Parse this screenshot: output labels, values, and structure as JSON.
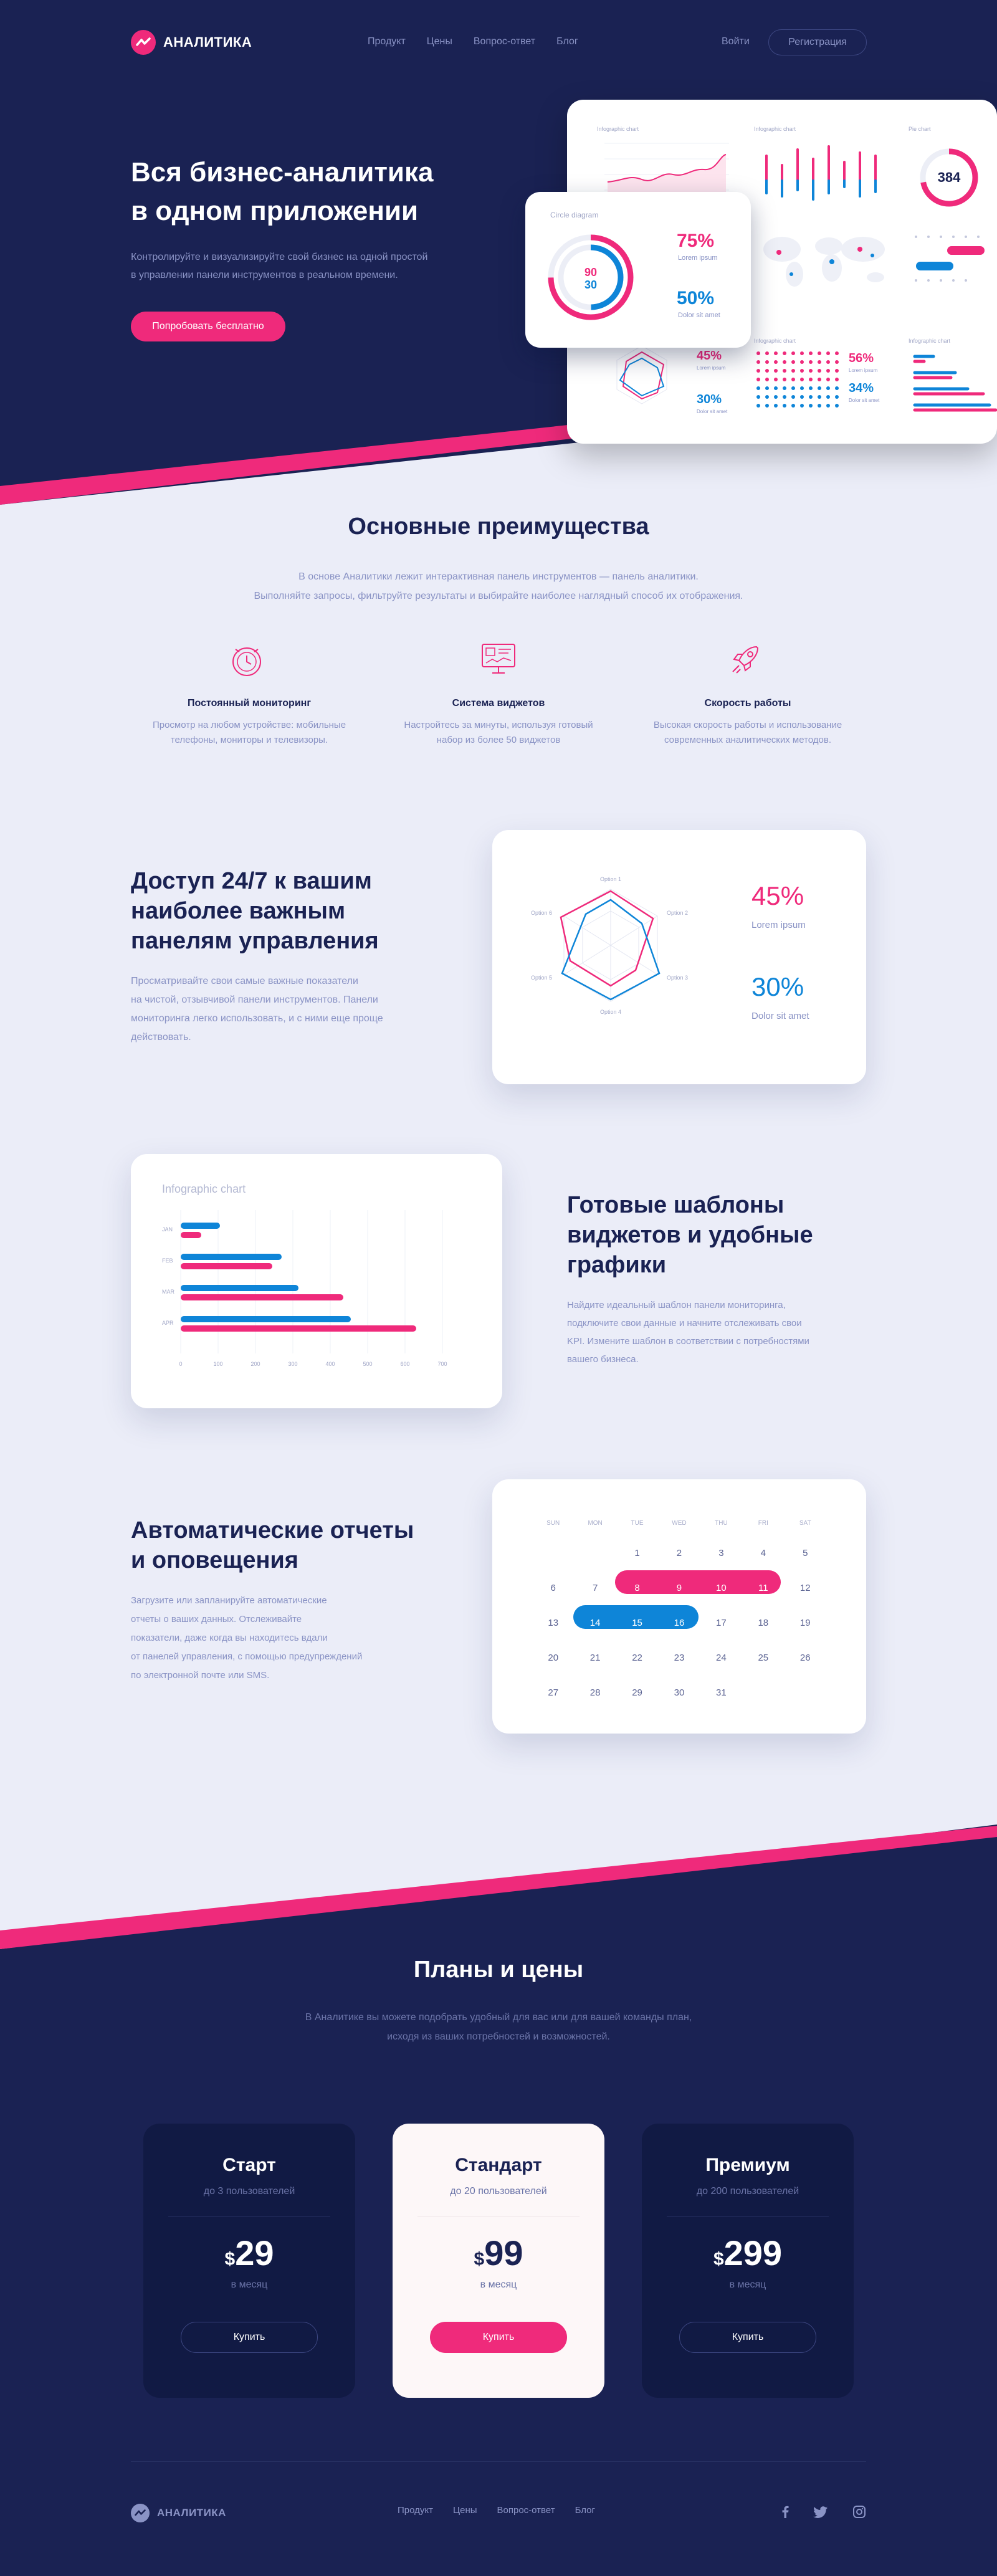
{
  "header": {
    "logo_text": "АНАЛИТИКА",
    "nav": [
      "Продукт",
      "Цены",
      "Вопрос-ответ",
      "Блог"
    ],
    "login": "Войти",
    "register": "Регистрация"
  },
  "hero": {
    "title_line1": "Вся бизнес-аналитика",
    "title_line2": "в одном приложении",
    "text_line1": "Контролируйте и визуализируйте свой бизнес на одной простой",
    "text_line2": "в управлении панели инструментов в реальном времени.",
    "cta": "Попробовать бесплатно"
  },
  "dashboard": {
    "label_infographic1": "Infographic chart",
    "label_infographic2": "Infographic chart",
    "label_pie": "Pie chart",
    "label_infographic3": "Infographic chart",
    "label_infographic4": "Infographic chart",
    "pie_value": "384",
    "circle_title": "Circle diagram",
    "circle_v1": "90",
    "circle_v2": "30",
    "pct1": "75%",
    "pct1_label": "Lorem ipsum",
    "pct2": "50%",
    "pct2_label": "Dolor sit amet",
    "radar_pct1": "45%",
    "radar_pct1_label": "Lorem ipsum",
    "radar_pct2": "30%",
    "radar_pct2_label": "Dolor sit amet",
    "dots_pct1": "56%",
    "dots_pct1_label": "Lorem ipsum",
    "dots_pct2": "34%",
    "dots_pct2_label": "Dolor sit amet"
  },
  "benefits": {
    "title": "Основные преимущества",
    "text_line1": "В основе Аналитики лежит интерактивная панель инструментов — панель аналитики.",
    "text_line2": "Выполняйте запросы, фильтруйте результаты и выбирайте наиболее наглядный способ их отображения.",
    "items": [
      {
        "title": "Постоянный мониторинг",
        "line1": "Просмотр на любом устройстве: мобильные",
        "line2": "телефоны, мониторы и телевизоры."
      },
      {
        "title": "Система виджетов",
        "line1": "Настройтесь за минуты, используя готовый",
        "line2": "набор из более 50 виджетов"
      },
      {
        "title": "Скорость работы",
        "line1": "Высокая скорость работы и использование",
        "line2": "современных аналитических методов."
      }
    ]
  },
  "access": {
    "title_line1": "Доступ 24/7 к вашим",
    "title_line2": "наиболее важным",
    "title_line3": "панелям управления",
    "text_line1": "Просматривайте свои самые важные показатели",
    "text_line2": "на чистой, отзывчивой панели инструментов. Панели",
    "text_line3": "мониторинга легко использовать, и с ними еще проще",
    "text_line4": "действовать.",
    "radar_options": [
      "Option 1",
      "Option 2",
      "Option 3",
      "Option 4",
      "Option 5",
      "Option 6"
    ],
    "pct1": "45%",
    "pct1_label": "Lorem ipsum",
    "pct2": "30%",
    "pct2_label": "Dolor sit amet"
  },
  "templates": {
    "title_line1": "Готовые шаблоны",
    "title_line2": "виджетов и удобные",
    "title_line3": "графики",
    "text_line1": "Найдите идеальный шаблон панели мониторинга,",
    "text_line2": "подключите свои данные и начните отслеживать свои",
    "text_line3": "KPI. Измените шаблон в соответствии с потребностями",
    "text_line4": "вашего бизнеса.",
    "chart_title": "Infographic chart"
  },
  "chart_data": {
    "type": "bar",
    "orientation": "horizontal",
    "title": "Infographic chart",
    "categories": [
      "JAN",
      "FEB",
      "MAR",
      "APR"
    ],
    "series": [
      {
        "color": "#0e85d8",
        "values": [
          105,
          270,
          315,
          455
        ]
      },
      {
        "color": "#ef2a7b",
        "values": [
          55,
          245,
          435,
          630
        ]
      }
    ],
    "xticks": [
      "0",
      "100",
      "200",
      "300",
      "400",
      "500",
      "600",
      "700"
    ],
    "xlim": [
      0,
      700
    ],
    "grid": true
  },
  "reports": {
    "title_line1": "Автоматические отчеты",
    "title_line2": "и оповещения",
    "text_line1": "Загрузите или запланируйте автоматические",
    "text_line2": "отчеты о ваших данных. Отслеживайте",
    "text_line3": "показатели, даже когда вы находитесь вдали",
    "text_line4": "от панелей управления, с помощью предупреждений",
    "text_line5": "по электронной почте или SMS.",
    "weekdays": [
      "SUN",
      "MON",
      "TUE",
      "WED",
      "THU",
      "FRI",
      "SAT"
    ],
    "days": [
      [
        "",
        "",
        "1",
        "2",
        "3",
        "4",
        "5"
      ],
      [
        "6",
        "7",
        "8",
        "9",
        "10",
        "11",
        "12"
      ],
      [
        "13",
        "14",
        "15",
        "16",
        "17",
        "18",
        "19"
      ],
      [
        "20",
        "21",
        "22",
        "23",
        "24",
        "25",
        "26"
      ],
      [
        "27",
        "28",
        "29",
        "30",
        "31",
        "",
        ""
      ]
    ]
  },
  "plans": {
    "title": "Планы и цены",
    "text_line1": "В Аналитике вы можете подобрать удобный для вас или для вашей команды план,",
    "text_line2": "исходя из ваших потребностей и возможностей.",
    "items": [
      {
        "name": "Старт",
        "users": "до 3 пользователей",
        "currency": "$",
        "price": "29",
        "period": "в месяц",
        "button": "Купить"
      },
      {
        "name": "Стандарт",
        "users": "до 20 пользователей",
        "currency": "$",
        "price": "99",
        "period": "в месяц",
        "button": "Купить"
      },
      {
        "name": "Премиум",
        "users": "до 200 пользователей",
        "currency": "$",
        "price": "299",
        "period": "в месяц",
        "button": "Купить"
      }
    ]
  },
  "footer": {
    "logo_text": "АНАЛИТИКА",
    "nav": [
      "Продукт",
      "Цены",
      "Вопрос-ответ",
      "Блог"
    ],
    "social": [
      "facebook-icon",
      "twitter-icon",
      "instagram-icon"
    ]
  },
  "colors": {
    "accent": "#ef2a7b",
    "blue": "#0e85d8",
    "navy": "#1a2253",
    "light_bg": "#ebedf8"
  }
}
